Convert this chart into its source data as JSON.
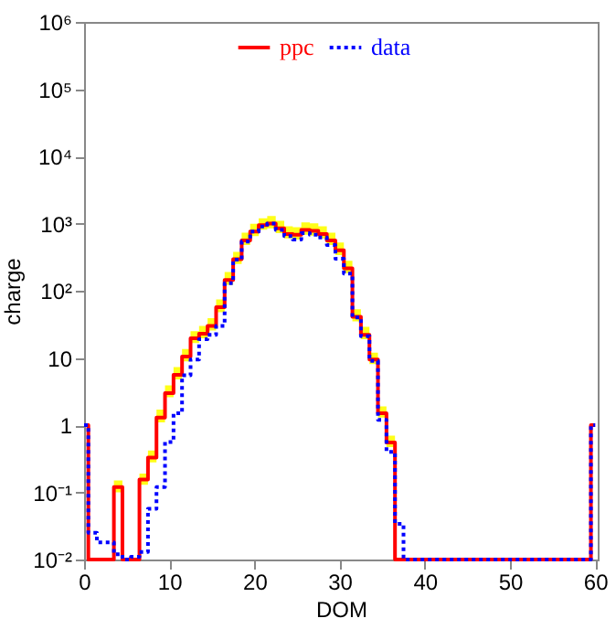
{
  "chart_data": {
    "type": "step",
    "xlabel": "DOM",
    "ylabel": "charge",
    "x": [
      0,
      1,
      2,
      3,
      4,
      5,
      6,
      7,
      8,
      9,
      10,
      11,
      12,
      13,
      14,
      15,
      16,
      17,
      18,
      19,
      20,
      21,
      22,
      23,
      24,
      25,
      26,
      27,
      28,
      29,
      30,
      31,
      32,
      33,
      34,
      35,
      36,
      37,
      38,
      39,
      40,
      41,
      42,
      43,
      44,
      45,
      46,
      47,
      48,
      49,
      50,
      51,
      52,
      53,
      54,
      55,
      56,
      57,
      58,
      59,
      60
    ],
    "series": [
      {
        "name": "ppc",
        "color": "#ff0000",
        "line_style": "solid",
        "values": [
          1,
          0.01,
          0.01,
          0.01,
          0.12,
          0.01,
          0.01,
          0.155,
          0.33,
          1.3,
          3.0,
          5.6,
          10.5,
          19.6,
          23,
          30,
          57,
          145,
          295,
          560,
          760,
          950,
          1000,
          850,
          700,
          680,
          800,
          780,
          700,
          560,
          400,
          215,
          41,
          22,
          9.5,
          1.5,
          0.55,
          0.01,
          0.01,
          0.01,
          0.01,
          0.01,
          0.01,
          0.01,
          0.01,
          0.01,
          0.01,
          0.01,
          0.01,
          0.01,
          0.01,
          0.01,
          0.01,
          0.01,
          0.01,
          0.01,
          0.01,
          0.01,
          0.01,
          0.01,
          1
        ],
        "upper": [
          1,
          0.01,
          0.01,
          0.01,
          0.15,
          0.01,
          0.01,
          0.19,
          0.42,
          1.7,
          3.9,
          7.3,
          13.6,
          25,
          30,
          39,
          74,
          190,
          380,
          730,
          990,
          1200,
          1300,
          1100,
          910,
          880,
          1040,
          1010,
          910,
          730,
          520,
          280,
          53,
          29,
          12,
          1.9,
          0.7,
          0.01,
          0.01,
          0.01,
          0.01,
          0.01,
          0.01,
          0.01,
          0.01,
          0.01,
          0.01,
          0.01,
          0.01,
          0.01,
          0.01,
          0.01,
          0.01,
          0.01,
          0.01,
          0.01,
          0.01,
          0.01,
          0.01,
          0.01,
          1
        ],
        "lower": [
          1,
          0.01,
          0.01,
          0.01,
          0.1,
          0.01,
          0.01,
          0.13,
          0.28,
          1.1,
          2.6,
          4.8,
          8.9,
          16.7,
          19.6,
          25.5,
          48,
          123,
          250,
          480,
          650,
          810,
          850,
          720,
          600,
          580,
          680,
          660,
          600,
          480,
          340,
          183,
          35,
          19,
          8.1,
          1.3,
          0.47,
          0.01,
          0.01,
          0.01,
          0.01,
          0.01,
          0.01,
          0.01,
          0.01,
          0.01,
          0.01,
          0.01,
          0.01,
          0.01,
          0.01,
          0.01,
          0.01,
          0.01,
          0.01,
          0.01,
          0.01,
          0.01,
          0.01,
          0.01,
          1
        ]
      },
      {
        "name": "data",
        "color": "#0000ff",
        "line_style": "dotted",
        "values": [
          1,
          0.025,
          0.018,
          0.018,
          0.012,
          0.01,
          0.011,
          0.013,
          0.057,
          0.12,
          0.56,
          1.5,
          5.5,
          9.5,
          19,
          22,
          30,
          130,
          290,
          540,
          760,
          900,
          1000,
          800,
          650,
          580,
          720,
          680,
          620,
          480,
          300,
          180,
          40,
          21,
          9,
          1.2,
          0.4,
          0.034,
          0.01,
          0.01,
          0.01,
          0.01,
          0.01,
          0.01,
          0.01,
          0.01,
          0.01,
          0.01,
          0.01,
          0.01,
          0.01,
          0.01,
          0.01,
          0.01,
          0.01,
          0.01,
          0.01,
          0.01,
          0.01,
          0.01,
          1
        ]
      }
    ],
    "log": "y",
    "xlim": [
      0,
      60.3
    ],
    "ylim": [
      0.01,
      1000000
    ],
    "xticks": [
      0,
      10,
      20,
      30,
      40,
      50,
      60
    ],
    "yticks": [
      {
        "value": 0.01,
        "label": "10⁻²"
      },
      {
        "value": 0.1,
        "label": "10⁻¹"
      },
      1,
      10,
      {
        "value": 100,
        "label": "10²"
      },
      {
        "value": 1000,
        "label": "10³"
      },
      {
        "value": 10000,
        "label": "10⁴"
      },
      {
        "value": 100000,
        "label": "10⁵"
      },
      {
        "value": 1000000,
        "label": "10⁶"
      }
    ],
    "legend": "top",
    "grid": false
  }
}
